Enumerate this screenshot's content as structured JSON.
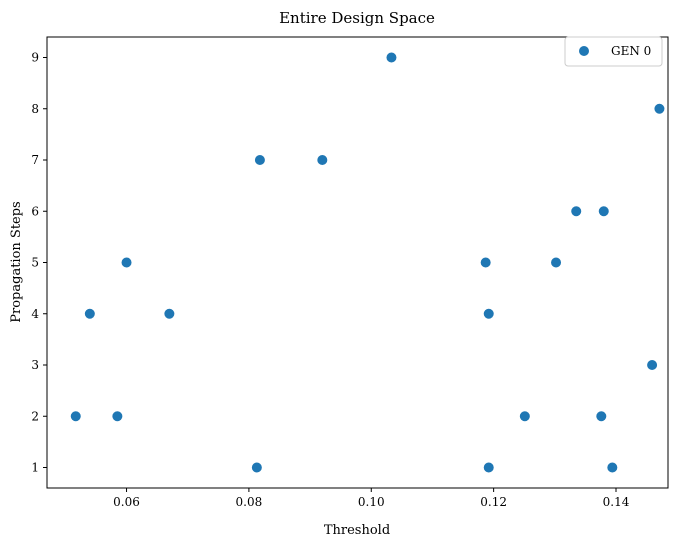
{
  "chart_data": {
    "type": "scatter",
    "title": "Entire Design Space",
    "xlabel": "Threshold",
    "ylabel": "Propagation Steps",
    "xlim": [
      0.047,
      0.1485
    ],
    "ylim": [
      0.6,
      9.4
    ],
    "xticks": [
      0.06,
      0.08,
      0.1,
      0.12,
      0.14
    ],
    "xtick_labels": [
      "0.06",
      "0.08",
      "0.10",
      "0.12",
      "0.14"
    ],
    "yticks": [
      1,
      2,
      3,
      4,
      5,
      6,
      7,
      8,
      9
    ],
    "ytick_labels": [
      "1",
      "2",
      "3",
      "4",
      "5",
      "6",
      "7",
      "8",
      "9"
    ],
    "grid": false,
    "legend_position": "top-right",
    "series": [
      {
        "name": "GEN 0",
        "color": "#1f77b4",
        "points": [
          {
            "x": 0.1033,
            "y": 9
          },
          {
            "x": 0.1471,
            "y": 8
          },
          {
            "x": 0.0818,
            "y": 7
          },
          {
            "x": 0.092,
            "y": 7
          },
          {
            "x": 0.1335,
            "y": 6
          },
          {
            "x": 0.138,
            "y": 6
          },
          {
            "x": 0.06,
            "y": 5
          },
          {
            "x": 0.1187,
            "y": 5
          },
          {
            "x": 0.1302,
            "y": 5
          },
          {
            "x": 0.054,
            "y": 4
          },
          {
            "x": 0.067,
            "y": 4
          },
          {
            "x": 0.1192,
            "y": 4
          },
          {
            "x": 0.1459,
            "y": 3
          },
          {
            "x": 0.0517,
            "y": 2
          },
          {
            "x": 0.0585,
            "y": 2
          },
          {
            "x": 0.1251,
            "y": 2
          },
          {
            "x": 0.1376,
            "y": 2
          },
          {
            "x": 0.0813,
            "y": 1
          },
          {
            "x": 0.1192,
            "y": 1
          },
          {
            "x": 0.1394,
            "y": 1
          }
        ]
      }
    ]
  }
}
